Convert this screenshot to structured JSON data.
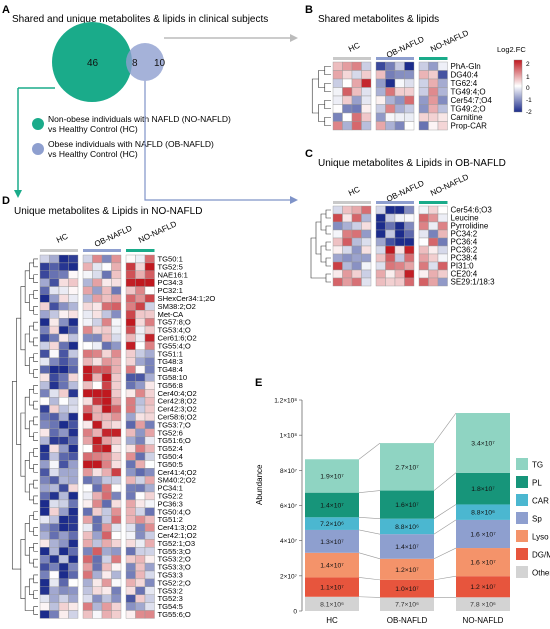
{
  "panelA": {
    "letter": "A",
    "title": "Shared and unique metabolites & lipids in clinical subjects",
    "venn": {
      "left": "46",
      "mid": "8",
      "right": "10"
    },
    "legend": [
      {
        "text": "Non-obese individuals with NAFLD (NO-NAFLD)",
        "text2": "vs Healthy Control (HC)",
        "color": "#1aab8a"
      },
      {
        "text": "Obese individuals with NAFLD (OB-NAFLD)",
        "text2": "vs Healthy Control (HC)",
        "color": "#8e9fcf"
      }
    ]
  },
  "panelB": {
    "letter": "B",
    "title": "Shared metabolites & lipids",
    "groups": [
      "HC",
      "OB-NAFLD",
      "NO-NAFLD"
    ],
    "rows": [
      "PhA-Gln",
      "DG40:4",
      "TG62:4",
      "TG49:4;O",
      "Cer54:7;O4",
      "TG49:2;O",
      "Carnitine",
      "Prop-CAR"
    ],
    "colorbar": {
      "title": "Log2.FC",
      "ticks": [
        "2",
        "1",
        "0",
        "-1",
        "-2"
      ]
    }
  },
  "panelC": {
    "letter": "C",
    "title": "Unique metabolites & Lipids in OB-NAFLD",
    "groups": [
      "HC",
      "OB-NAFLD",
      "NO-NAFLD"
    ],
    "rows": [
      "Cer54:6;O3",
      "Leucine",
      "Pyrrolidine",
      "PC34:2",
      "PC36:4",
      "PC36:2",
      "PC38:4",
      "PI31:0",
      "CE20:4",
      "SE29:1/18:3"
    ]
  },
  "panelD": {
    "letter": "D",
    "title": "Unique metabolites & Lipids in NO-NAFLD",
    "groups": [
      "HC",
      "OB-NAFLD",
      "NO-NAFLD"
    ],
    "rows": [
      "TG50:1",
      "TG52:5",
      "NAE16:1",
      "PC34:3",
      "PC32:1",
      "SHexCer34:1;2O",
      "SM38:2;O2",
      "Met-CA",
      "TG57:8;O",
      "TG53:4;O",
      "Cer61:6;O2",
      "TG55:4;O",
      "TG51:1",
      "TG48:3",
      "TG48:4",
      "TG58:10",
      "TG56:8",
      "Cer40:4;O2",
      "Cer42:8;O2",
      "Cer42:3;O2",
      "Cer58:6;O2",
      "TG53:7;O",
      "TG52:6",
      "TG51:6;O",
      "TG52:4",
      "TG50:4",
      "TG50:5",
      "Cer41:4;O2",
      "SM40:2;O2",
      "PC34:1",
      "TG52:2",
      "PC36:3",
      "TG50:4;O",
      "TG51:2",
      "Cer41:3;O2",
      "Cer42:1;O2",
      "TG52:1;O3",
      "TG55:3;O",
      "TG53:2;O",
      "TG53:3;O",
      "TG53:3",
      "TG52:2;O",
      "TG53:2",
      "TG52:3",
      "TG54:5",
      "TG55:6;O"
    ]
  },
  "panelE": {
    "letter": "E"
  },
  "chart_data": {
    "type": "bar",
    "stacked": true,
    "categories": [
      "HC",
      "OB-NAFLD",
      "NO-NAFLD"
    ],
    "ylabel": "Abundance",
    "ylim": [
      0,
      120000000
    ],
    "yticks": [
      "0",
      "2×10⁷",
      "4×10⁷",
      "6×10⁷",
      "8×10⁷",
      "1×10⁸",
      "1.2×10⁸"
    ],
    "series": [
      {
        "name": "Other",
        "color": "#d3d3d3",
        "values": [
          8100000,
          7700000,
          7800000
        ],
        "labels": [
          "8.1×10⁶",
          "7.7×10⁶",
          "7.8 ×10⁶"
        ]
      },
      {
        "name": "DG/MG",
        "color": "#e7553d",
        "values": [
          11000000,
          10000000,
          12000000
        ],
        "labels": [
          "1.1×10⁷",
          "1.0×10⁷",
          "1.2 ×10⁷"
        ]
      },
      {
        "name": "Lyso",
        "color": "#f4936a",
        "values": [
          14000000,
          12000000,
          16000000
        ],
        "labels": [
          "1.4×10⁷",
          "1.2×10⁷",
          "1.6 ×10⁷"
        ]
      },
      {
        "name": "Sp",
        "color": "#8e9fcf",
        "values": [
          13000000,
          14000000,
          16000000
        ],
        "labels": [
          "1.3×10⁷",
          "1.4×10⁷",
          "1.6 ×10⁷"
        ]
      },
      {
        "name": "CAR",
        "color": "#4bb7d0",
        "values": [
          7200000,
          8800000,
          8800000
        ],
        "labels": [
          "7.2×10⁶",
          "8.8×10⁶",
          "8.8×10⁶"
        ]
      },
      {
        "name": "PL",
        "color": "#17957a",
        "values": [
          14000000,
          16000000,
          18000000
        ],
        "labels": [
          "1.4×10⁷",
          "1.6×10⁷",
          "1.8×10⁷"
        ]
      },
      {
        "name": "TG",
        "color": "#8fd4c2",
        "values": [
          19000000,
          27000000,
          34000000
        ],
        "labels": [
          "1.9×10⁷",
          "2.7×10⁷",
          "3.4×10⁷"
        ]
      }
    ],
    "legend_order": [
      "TG",
      "PL",
      "CAR",
      "Sp",
      "Lyso",
      "DG/MG",
      "Other"
    ],
    "legend_position": "right"
  }
}
